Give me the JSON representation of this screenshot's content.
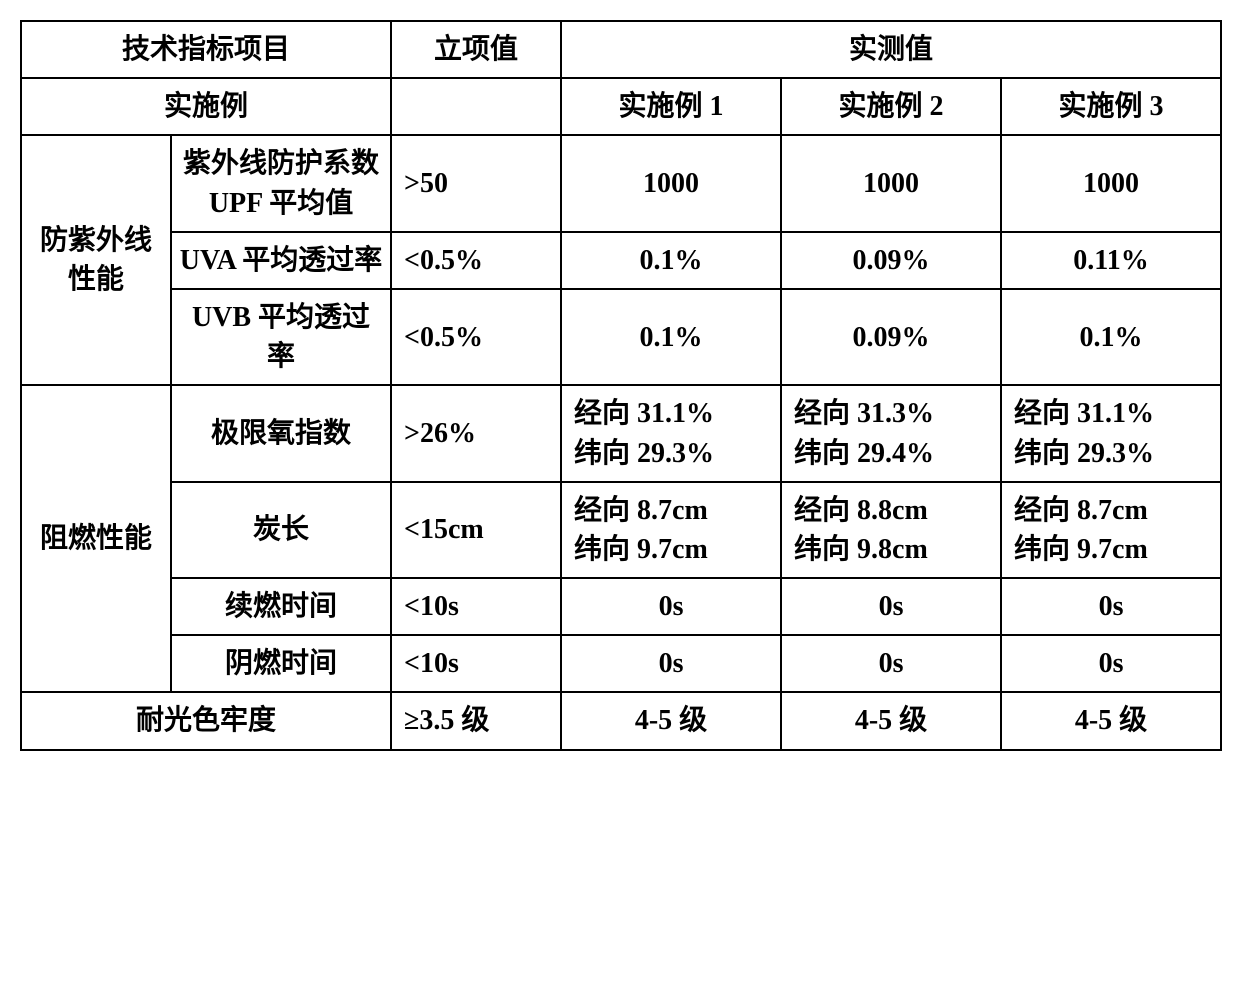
{
  "table": {
    "border_color": "#000000",
    "background_color": "#ffffff",
    "text_color": "#000000",
    "font_size_pt": 21,
    "font_weight": "bold",
    "header": {
      "tech_item": "技术指标项目",
      "target_value": "立项值",
      "measured_value": "实测值",
      "example_label": "实施例",
      "ex1": "实施例 1",
      "ex2": "实施例 2",
      "ex3": "实施例 3"
    },
    "groups": {
      "uv": {
        "label": "防紫外线性能",
        "rows": {
          "upf": {
            "label": "紫外线防护系数UPF 平均值",
            "target": ">50",
            "v1": "1000",
            "v2": "1000",
            "v3": "1000"
          },
          "uva": {
            "label": "UVA 平均透过率",
            "target": "<0.5%",
            "v1": "0.1%",
            "v2": "0.09%",
            "v3": "0.11%"
          },
          "uvb": {
            "label": "UVB 平均透过率",
            "target": "<0.5%",
            "v1": "0.1%",
            "v2": "0.09%",
            "v3": "0.1%"
          }
        }
      },
      "flame": {
        "label": "阻燃性能",
        "rows": {
          "loi": {
            "label": "极限氧指数",
            "target": ">26%",
            "v1": "经向 31.1%\n纬向 29.3%",
            "v2": "经向 31.3%\n纬向 29.4%",
            "v3": "经向 31.1%\n纬向 29.3%"
          },
          "char": {
            "label": "炭长",
            "target": "<15cm",
            "v1": "经向 8.7cm\n纬向 9.7cm",
            "v2": "经向 8.8cm\n纬向 9.8cm",
            "v3": "经向 8.7cm\n纬向 9.7cm"
          },
          "afterflame": {
            "label": "续燃时间",
            "target": "<10s",
            "v1": "0s",
            "v2": "0s",
            "v3": "0s"
          },
          "afterglow": {
            "label": "阴燃时间",
            "target": "<10s",
            "v1": "0s",
            "v2": "0s",
            "v3": "0s"
          }
        }
      },
      "light": {
        "label": "耐光色牢度",
        "target": "≥3.5 级",
        "v1": "4-5 级",
        "v2": "4-5 级",
        "v3": "4-5 级"
      }
    }
  }
}
